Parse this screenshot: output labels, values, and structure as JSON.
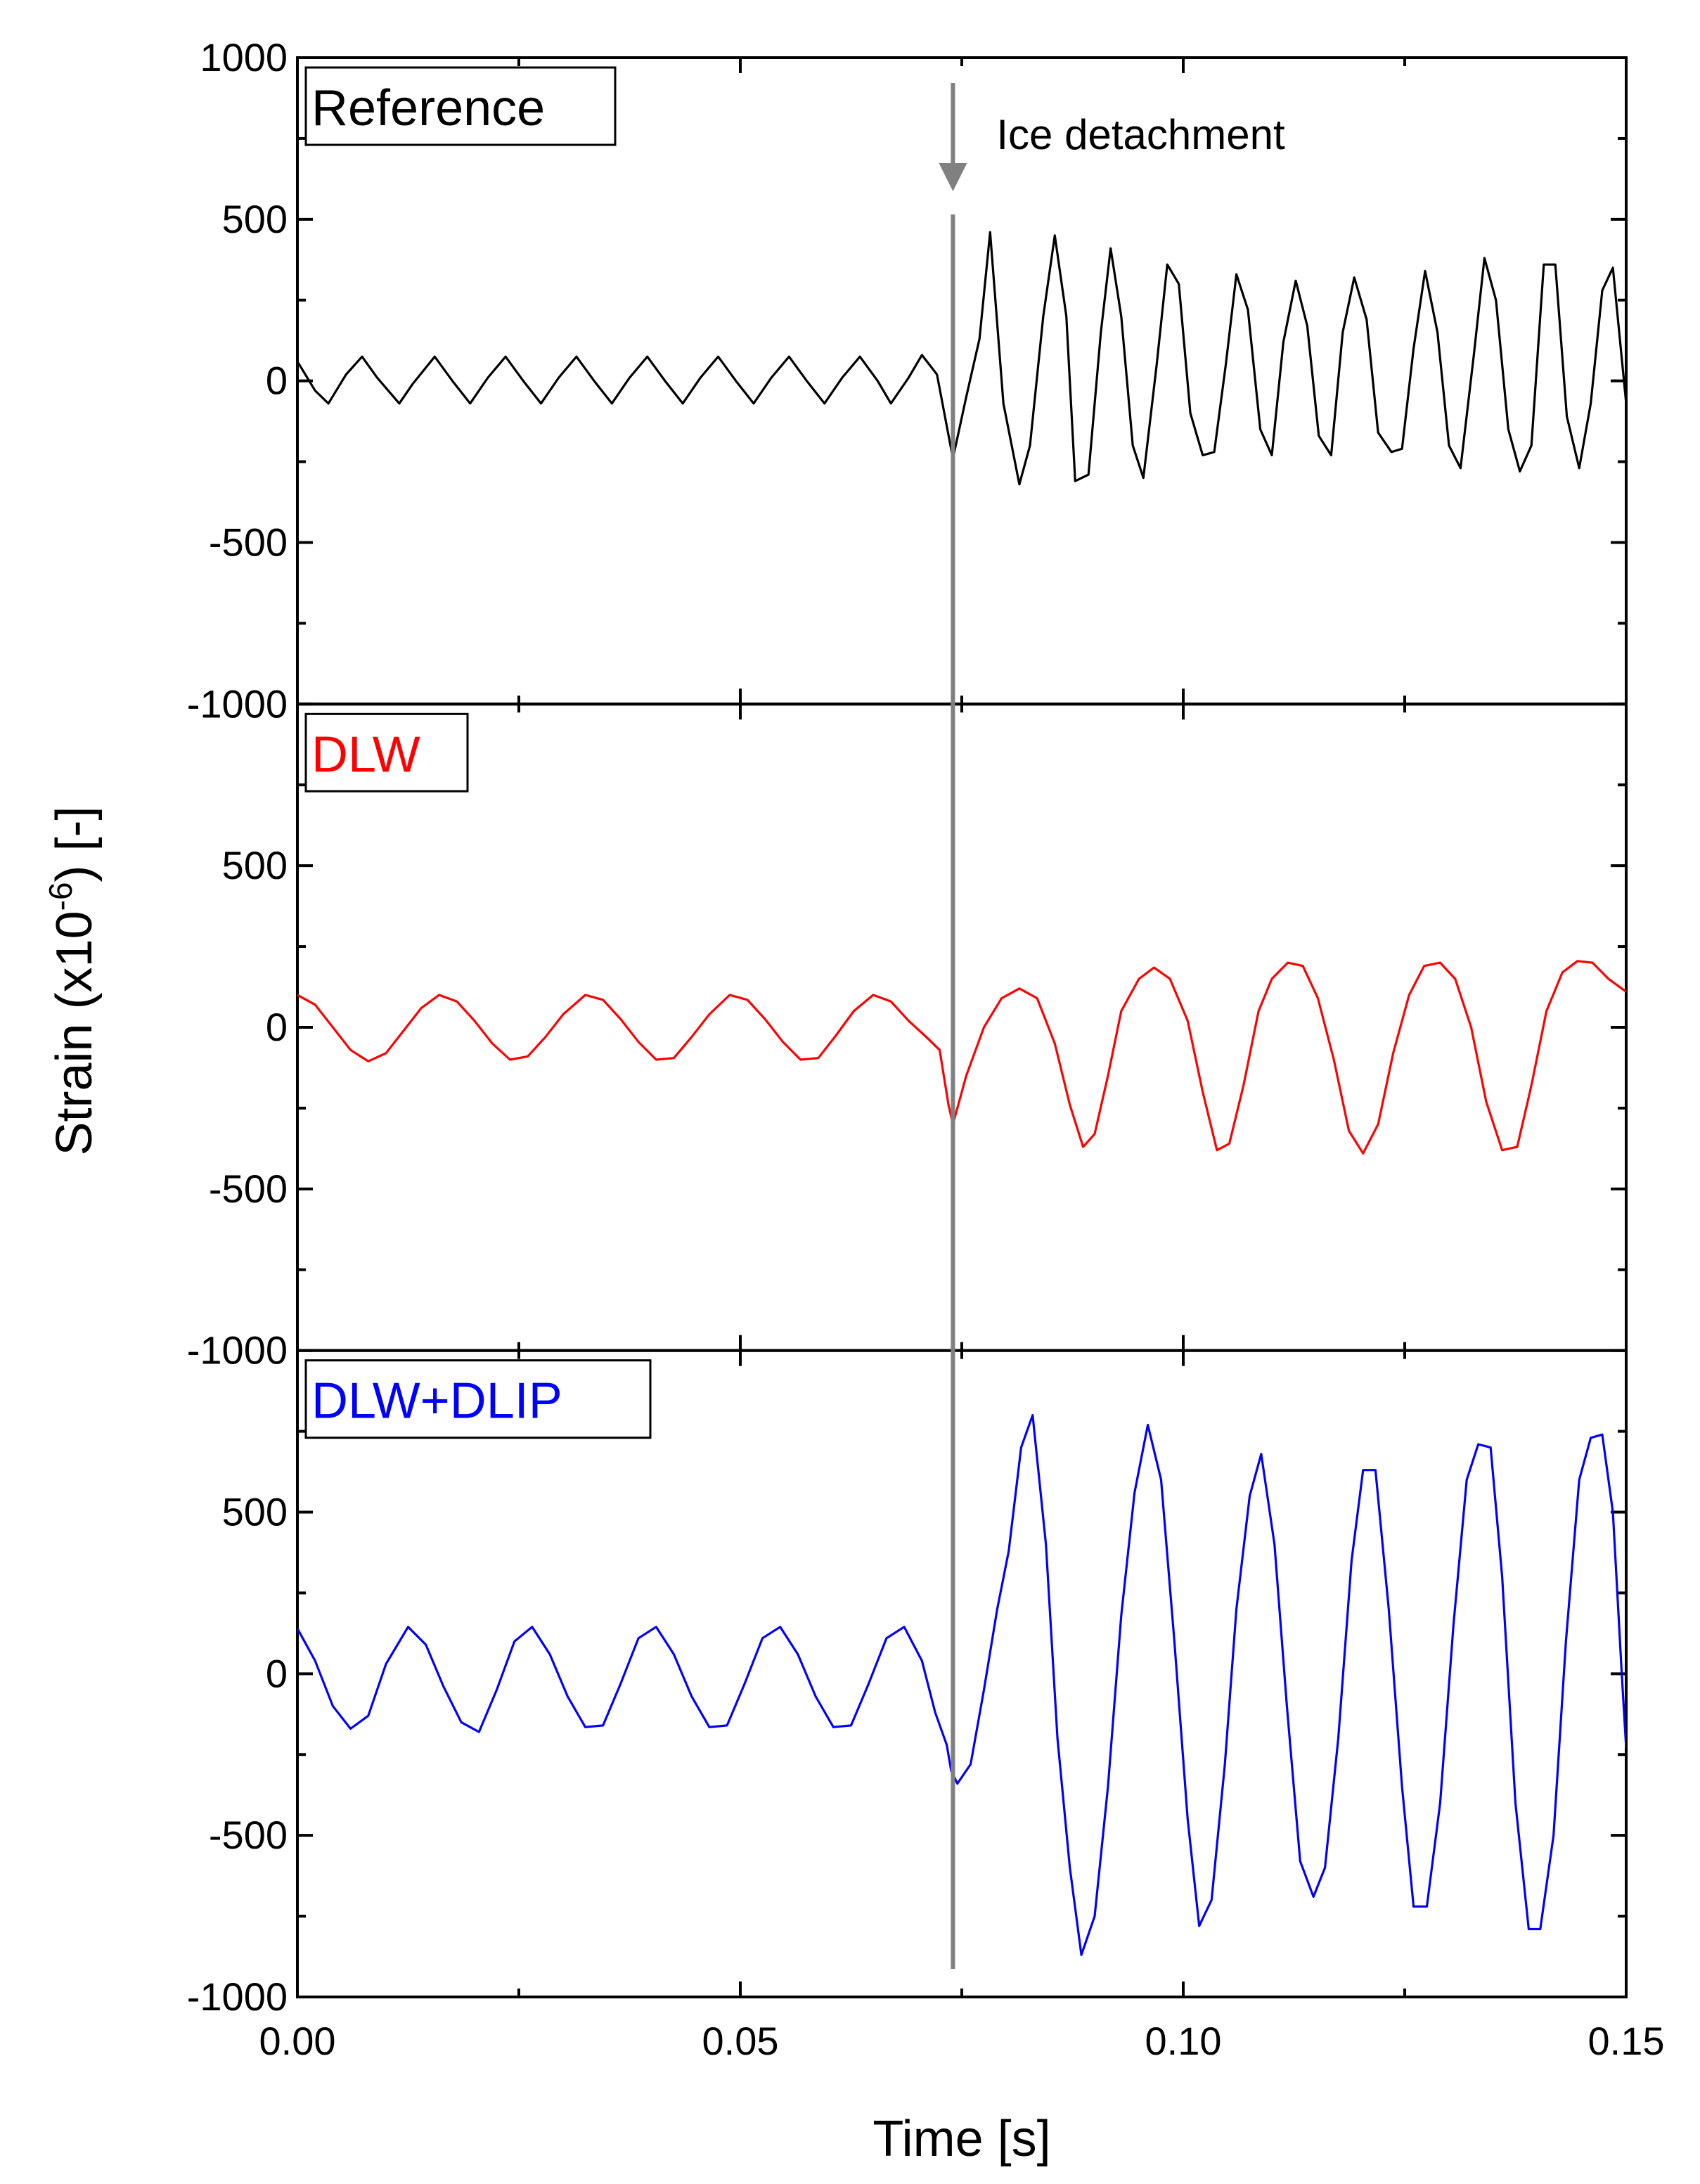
{
  "chart_data": {
    "type": "line",
    "xlabel": "Time [s]",
    "ylabel_main": "Strain (x10",
    "ylabel_sup": "-6",
    "ylabel_end": ") [-]",
    "xlim": [
      0,
      0.15
    ],
    "x_ticks": [
      "0.00",
      "0.05",
      "0.10",
      "0.15"
    ],
    "x_tick_values": [
      0,
      0.05,
      0.1,
      0.15
    ],
    "ylim": [
      -1000,
      1000
    ],
    "y_ticks": [
      "1000",
      "500",
      "0",
      "-500",
      "-1000"
    ],
    "y_tick_values": [
      1000,
      500,
      0,
      -500,
      -1000
    ],
    "grid": false,
    "event": {
      "label": "Ice detachment",
      "x": 0.074,
      "color": "#808080"
    },
    "panels": [
      {
        "name": "Reference",
        "color": "#000000",
        "pre": {
          "amplitude": 70,
          "frequency": 230,
          "offset": 0
        },
        "post": {
          "frequency": 330,
          "offset": 70
        },
        "points": [
          [
            0.0,
            60
          ],
          [
            0.002,
            -30
          ],
          [
            0.0035,
            -70
          ],
          [
            0.0055,
            20
          ],
          [
            0.0073,
            75
          ],
          [
            0.009,
            10
          ],
          [
            0.0115,
            -70
          ],
          [
            0.013,
            -10
          ],
          [
            0.0155,
            75
          ],
          [
            0.0175,
            0
          ],
          [
            0.0195,
            -70
          ],
          [
            0.0215,
            10
          ],
          [
            0.0235,
            75
          ],
          [
            0.0255,
            0
          ],
          [
            0.0275,
            -70
          ],
          [
            0.0295,
            10
          ],
          [
            0.0315,
            75
          ],
          [
            0.0335,
            0
          ],
          [
            0.0355,
            -70
          ],
          [
            0.0375,
            10
          ],
          [
            0.0395,
            75
          ],
          [
            0.0415,
            0
          ],
          [
            0.0435,
            -70
          ],
          [
            0.0455,
            10
          ],
          [
            0.0475,
            75
          ],
          [
            0.0495,
            0
          ],
          [
            0.0515,
            -70
          ],
          [
            0.0535,
            10
          ],
          [
            0.0555,
            75
          ],
          [
            0.0575,
            0
          ],
          [
            0.0595,
            -70
          ],
          [
            0.0615,
            10
          ],
          [
            0.0635,
            75
          ],
          [
            0.0655,
            0
          ],
          [
            0.067,
            -70
          ],
          [
            0.069,
            10
          ],
          [
            0.0705,
            80
          ],
          [
            0.0722,
            20
          ],
          [
            0.074,
            -240
          ],
          [
            0.0755,
            -50
          ],
          [
            0.077,
            130
          ],
          [
            0.0782,
            460
          ],
          [
            0.0797,
            -70
          ],
          [
            0.0815,
            -320
          ],
          [
            0.0827,
            -200
          ],
          [
            0.0842,
            200
          ],
          [
            0.0855,
            450
          ],
          [
            0.0868,
            200
          ],
          [
            0.0878,
            -310
          ],
          [
            0.0893,
            -290
          ],
          [
            0.0907,
            150
          ],
          [
            0.0918,
            410
          ],
          [
            0.093,
            200
          ],
          [
            0.0943,
            -200
          ],
          [
            0.0955,
            -300
          ],
          [
            0.097,
            50
          ],
          [
            0.0982,
            360
          ],
          [
            0.0995,
            300
          ],
          [
            0.1008,
            -100
          ],
          [
            0.1022,
            -230
          ],
          [
            0.1035,
            -220
          ],
          [
            0.1048,
            50
          ],
          [
            0.106,
            330
          ],
          [
            0.1073,
            220
          ],
          [
            0.1087,
            -150
          ],
          [
            0.11,
            -230
          ],
          [
            0.1113,
            120
          ],
          [
            0.1127,
            310
          ],
          [
            0.114,
            170
          ],
          [
            0.1153,
            -170
          ],
          [
            0.1167,
            -230
          ],
          [
            0.118,
            150
          ],
          [
            0.1193,
            320
          ],
          [
            0.1207,
            190
          ],
          [
            0.122,
            -160
          ],
          [
            0.1235,
            -220
          ],
          [
            0.1247,
            -210
          ],
          [
            0.126,
            100
          ],
          [
            0.1273,
            340
          ],
          [
            0.1287,
            150
          ],
          [
            0.13,
            -200
          ],
          [
            0.1313,
            -270
          ],
          [
            0.1328,
            80
          ],
          [
            0.134,
            380
          ],
          [
            0.1353,
            250
          ],
          [
            0.1367,
            -150
          ],
          [
            0.138,
            -280
          ],
          [
            0.1393,
            -200
          ],
          [
            0.1407,
            360
          ],
          [
            0.142,
            360
          ],
          [
            0.1433,
            -110
          ],
          [
            0.1447,
            -270
          ],
          [
            0.146,
            -70
          ],
          [
            0.1473,
            280
          ],
          [
            0.1485,
            350
          ],
          [
            0.15,
            -70
          ]
        ]
      },
      {
        "name": "DLW",
        "color": "#ff0000",
        "pre": {
          "amplitude": 105,
          "frequency": 122,
          "offset": 0
        },
        "post": {
          "frequency": 120,
          "offset": -80
        },
        "points": [
          [
            0.0,
            100
          ],
          [
            0.002,
            70
          ],
          [
            0.004,
            0
          ],
          [
            0.006,
            -70
          ],
          [
            0.008,
            -105
          ],
          [
            0.01,
            -80
          ],
          [
            0.012,
            -10
          ],
          [
            0.014,
            60
          ],
          [
            0.016,
            100
          ],
          [
            0.018,
            80
          ],
          [
            0.02,
            20
          ],
          [
            0.022,
            -50
          ],
          [
            0.024,
            -100
          ],
          [
            0.026,
            -90
          ],
          [
            0.028,
            -30
          ],
          [
            0.03,
            40
          ],
          [
            0.0325,
            100
          ],
          [
            0.0345,
            85
          ],
          [
            0.0365,
            25
          ],
          [
            0.0385,
            -45
          ],
          [
            0.0405,
            -100
          ],
          [
            0.0425,
            -95
          ],
          [
            0.0445,
            -30
          ],
          [
            0.0465,
            40
          ],
          [
            0.0488,
            100
          ],
          [
            0.0508,
            85
          ],
          [
            0.0528,
            25
          ],
          [
            0.0548,
            -45
          ],
          [
            0.0568,
            -100
          ],
          [
            0.0588,
            -95
          ],
          [
            0.0608,
            -25
          ],
          [
            0.0628,
            50
          ],
          [
            0.065,
            100
          ],
          [
            0.067,
            80
          ],
          [
            0.069,
            20
          ],
          [
            0.071,
            -30
          ],
          [
            0.0725,
            -70
          ],
          [
            0.0735,
            -240
          ],
          [
            0.074,
            -300
          ],
          [
            0.0755,
            -150
          ],
          [
            0.0775,
            0
          ],
          [
            0.0795,
            90
          ],
          [
            0.0815,
            120
          ],
          [
            0.0835,
            90
          ],
          [
            0.0855,
            -50
          ],
          [
            0.0872,
            -240
          ],
          [
            0.0887,
            -370
          ],
          [
            0.09,
            -330
          ],
          [
            0.0915,
            -150
          ],
          [
            0.093,
            50
          ],
          [
            0.095,
            150
          ],
          [
            0.0967,
            185
          ],
          [
            0.0985,
            150
          ],
          [
            0.1005,
            20
          ],
          [
            0.1022,
            -200
          ],
          [
            0.1038,
            -380
          ],
          [
            0.1052,
            -360
          ],
          [
            0.1068,
            -180
          ],
          [
            0.1085,
            50
          ],
          [
            0.11,
            150
          ],
          [
            0.1118,
            200
          ],
          [
            0.1135,
            190
          ],
          [
            0.1152,
            90
          ],
          [
            0.117,
            -100
          ],
          [
            0.1187,
            -320
          ],
          [
            0.1203,
            -390
          ],
          [
            0.122,
            -300
          ],
          [
            0.1237,
            -80
          ],
          [
            0.1255,
            100
          ],
          [
            0.1272,
            190
          ],
          [
            0.129,
            200
          ],
          [
            0.1307,
            150
          ],
          [
            0.1325,
            0
          ],
          [
            0.1342,
            -230
          ],
          [
            0.136,
            -380
          ],
          [
            0.1377,
            -370
          ],
          [
            0.1393,
            -180
          ],
          [
            0.141,
            50
          ],
          [
            0.1428,
            170
          ],
          [
            0.1445,
            205
          ],
          [
            0.1462,
            200
          ],
          [
            0.148,
            150
          ],
          [
            0.15,
            110
          ]
        ]
      },
      {
        "name": "DLW+DLIP",
        "color": "#0000ff",
        "pre": {
          "amplitude": 150,
          "frequency": 75,
          "offset": 0
        },
        "post": {
          "frequency": 78,
          "offset": -50
        },
        "points": [
          [
            0.0,
            140
          ],
          [
            0.002,
            40
          ],
          [
            0.004,
            -100
          ],
          [
            0.006,
            -170
          ],
          [
            0.008,
            -130
          ],
          [
            0.01,
            30
          ],
          [
            0.0125,
            145
          ],
          [
            0.0145,
            90
          ],
          [
            0.0165,
            -40
          ],
          [
            0.0185,
            -150
          ],
          [
            0.0205,
            -180
          ],
          [
            0.0225,
            -50
          ],
          [
            0.0245,
            100
          ],
          [
            0.0265,
            145
          ],
          [
            0.0285,
            60
          ],
          [
            0.0305,
            -70
          ],
          [
            0.0325,
            -165
          ],
          [
            0.0345,
            -160
          ],
          [
            0.0365,
            -30
          ],
          [
            0.0385,
            110
          ],
          [
            0.0405,
            145
          ],
          [
            0.0425,
            60
          ],
          [
            0.0445,
            -70
          ],
          [
            0.0465,
            -165
          ],
          [
            0.0485,
            -160
          ],
          [
            0.0505,
            -30
          ],
          [
            0.0525,
            110
          ],
          [
            0.0545,
            145
          ],
          [
            0.0565,
            60
          ],
          [
            0.0585,
            -70
          ],
          [
            0.0605,
            -165
          ],
          [
            0.0625,
            -160
          ],
          [
            0.0645,
            -30
          ],
          [
            0.0665,
            110
          ],
          [
            0.0685,
            145
          ],
          [
            0.0705,
            40
          ],
          [
            0.072,
            -120
          ],
          [
            0.0733,
            -220
          ],
          [
            0.0738,
            -300
          ],
          [
            0.0745,
            -340
          ],
          [
            0.076,
            -280
          ],
          [
            0.0775,
            -50
          ],
          [
            0.079,
            200
          ],
          [
            0.0803,
            380
          ],
          [
            0.0817,
            700
          ],
          [
            0.083,
            800
          ],
          [
            0.0845,
            400
          ],
          [
            0.0858,
            -200
          ],
          [
            0.0872,
            -600
          ],
          [
            0.0885,
            -870
          ],
          [
            0.09,
            -750
          ],
          [
            0.0915,
            -350
          ],
          [
            0.093,
            180
          ],
          [
            0.0945,
            560
          ],
          [
            0.096,
            770
          ],
          [
            0.0975,
            600
          ],
          [
            0.099,
            100
          ],
          [
            0.1005,
            -450
          ],
          [
            0.1018,
            -780
          ],
          [
            0.1032,
            -700
          ],
          [
            0.1047,
            -280
          ],
          [
            0.106,
            200
          ],
          [
            0.1075,
            550
          ],
          [
            0.1088,
            680
          ],
          [
            0.1103,
            400
          ],
          [
            0.1117,
            -100
          ],
          [
            0.1132,
            -580
          ],
          [
            0.1147,
            -690
          ],
          [
            0.116,
            -600
          ],
          [
            0.1175,
            -200
          ],
          [
            0.119,
            350
          ],
          [
            0.1203,
            630
          ],
          [
            0.1217,
            630
          ],
          [
            0.1232,
            200
          ],
          [
            0.1247,
            -350
          ],
          [
            0.126,
            -720
          ],
          [
            0.1275,
            -720
          ],
          [
            0.129,
            -400
          ],
          [
            0.1305,
            150
          ],
          [
            0.132,
            600
          ],
          [
            0.1333,
            710
          ],
          [
            0.1347,
            700
          ],
          [
            0.136,
            300
          ],
          [
            0.1375,
            -400
          ],
          [
            0.139,
            -790
          ],
          [
            0.1403,
            -790
          ],
          [
            0.1418,
            -500
          ],
          [
            0.1432,
            100
          ],
          [
            0.1447,
            600
          ],
          [
            0.146,
            730
          ],
          [
            0.1473,
            740
          ],
          [
            0.1485,
            500
          ],
          [
            0.1495,
            0
          ],
          [
            0.15,
            -230
          ]
        ]
      }
    ]
  }
}
